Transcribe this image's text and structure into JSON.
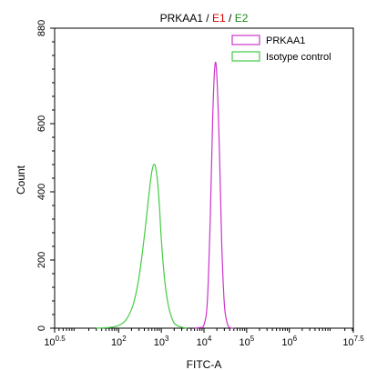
{
  "chart_data": {
    "type": "line",
    "title_parts": [
      {
        "text": "PRKAA1",
        "color": "#000000"
      },
      {
        "text": " / ",
        "color": "#000000"
      },
      {
        "text": "E1",
        "color": "#d40000"
      },
      {
        "text": " / ",
        "color": "#000000"
      },
      {
        "text": "E2",
        "color": "#1a8a1a"
      }
    ],
    "xlabel": "FITC-A",
    "ylabel": "Count",
    "x_scale": "log",
    "xlim": [
      3.16,
      31600000
    ],
    "ylim": [
      0,
      880
    ],
    "y_ticks": [
      "0",
      "200",
      "400",
      "600",
      "880"
    ],
    "y_tick_values": [
      0,
      200,
      400,
      600,
      880
    ],
    "x_ticks": [
      {
        "base": "10",
        "exp": "0.5",
        "value": 3.16
      },
      {
        "base": "10",
        "exp": "2",
        "value": 100
      },
      {
        "base": "10",
        "exp": "3",
        "value": 1000
      },
      {
        "base": "10",
        "exp": "4",
        "value": 10000
      },
      {
        "base": "10",
        "exp": "5",
        "value": 100000
      },
      {
        "base": "10",
        "exp": "6",
        "value": 1000000
      },
      {
        "base": "10",
        "exp": "7.5",
        "value": 31600000
      }
    ],
    "legend_position": "top-right",
    "series": [
      {
        "name": "PRKAA1",
        "color": "#cc33cc",
        "points": [
          [
            6000,
            0
          ],
          [
            8000,
            2
          ],
          [
            10000,
            10
          ],
          [
            12000,
            80
          ],
          [
            14000,
            320
          ],
          [
            16000,
            620
          ],
          [
            18000,
            770
          ],
          [
            20000,
            740
          ],
          [
            23000,
            520
          ],
          [
            26000,
            250
          ],
          [
            30000,
            70
          ],
          [
            35000,
            15
          ],
          [
            40000,
            2
          ],
          [
            50000,
            0
          ]
        ]
      },
      {
        "name": "Isotype control",
        "color": "#44cc44",
        "points": [
          [
            30,
            0
          ],
          [
            60,
            2
          ],
          [
            100,
            8
          ],
          [
            150,
            25
          ],
          [
            220,
            70
          ],
          [
            300,
            150
          ],
          [
            400,
            270
          ],
          [
            500,
            380
          ],
          [
            600,
            460
          ],
          [
            700,
            480
          ],
          [
            800,
            440
          ],
          [
            900,
            360
          ],
          [
            1000,
            260
          ],
          [
            1200,
            140
          ],
          [
            1500,
            60
          ],
          [
            2000,
            15
          ],
          [
            3000,
            3
          ],
          [
            4000,
            0
          ]
        ]
      }
    ]
  }
}
